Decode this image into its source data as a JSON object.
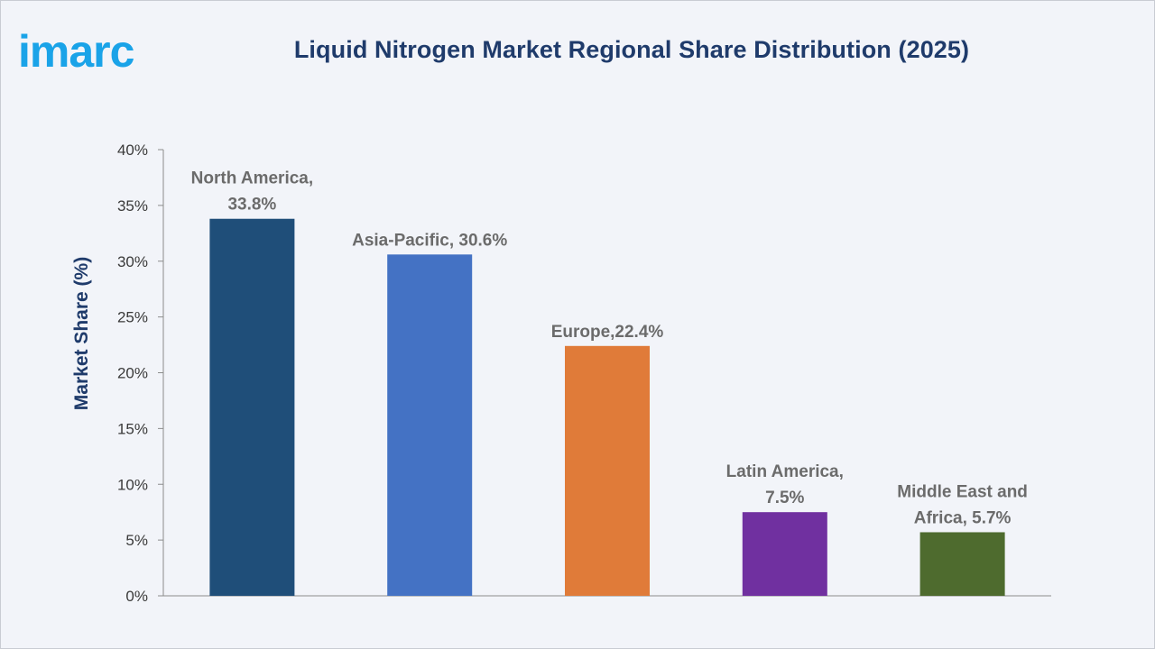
{
  "brand": {
    "logo_text": "imarc",
    "logo_color": "#1aa3e8"
  },
  "chart_data": {
    "type": "bar",
    "title": "Liquid Nitrogen Market Regional Share Distribution (2025)",
    "xlabel": "",
    "ylabel": "Market Share (%)",
    "ylim": [
      0,
      40
    ],
    "yticks": [
      "0%",
      "5%",
      "10%",
      "15%",
      "20%",
      "25%",
      "30%",
      "35%",
      "40%"
    ],
    "categories": [
      "North America",
      "Asia-Pacific",
      "Europe",
      "Latin America",
      "Middle East and Africa"
    ],
    "values": [
      33.8,
      30.6,
      22.4,
      7.5,
      5.7
    ],
    "data_labels": [
      [
        "North America,",
        "33.8%"
      ],
      [
        "Asia-Pacific, 30.6%"
      ],
      [
        "Europe,22.4%"
      ],
      [
        "Latin America,",
        "7.5%"
      ],
      [
        "Middle East and",
        "Africa, 5.7%"
      ]
    ],
    "colors": [
      "#1f4e79",
      "#4472c4",
      "#e07b39",
      "#7030a0",
      "#4e6b2e"
    ],
    "grid": false,
    "legend": "none"
  }
}
